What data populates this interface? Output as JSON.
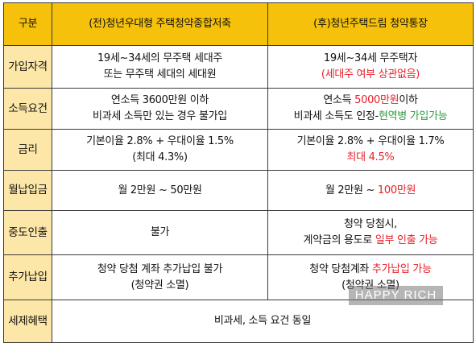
{
  "header": {
    "col0": "구분",
    "col1": "(전)청년우대형 주택청약종합저축",
    "col2": "(후)청년주택드림 청약통장"
  },
  "rows": [
    {
      "label": "가입자격",
      "left": [
        "19세~34세의 무주택 세대주",
        "또는 무주택 세대의 세대원"
      ],
      "right_l1": [
        "19세~34세 무주택자"
      ],
      "right_l2": [
        "(세대주 여부 상관없음)"
      ]
    },
    {
      "label": "소득요건",
      "left": [
        "연소득 3600만원 이하",
        "비과세 소득만 있는 경우 불가입"
      ],
      "right_l1": [
        "연소득 ",
        "5000만원",
        "이하"
      ],
      "right_l2": [
        "비과세 소득도 인정-",
        "현역병 가입가능"
      ]
    },
    {
      "label": "금리",
      "left": [
        "기본이율 2.8% + 우대이율 1.5%",
        "(최대 4.3%)"
      ],
      "right_l1": [
        "기본이율 2.8% + 우대이율 1.7%"
      ],
      "right_l2": [
        "최대 4.5%"
      ]
    },
    {
      "label": "월납입금",
      "left": [
        "월 2만원 ~ 50만원"
      ],
      "right_l1": [
        "월 2만원 ~ ",
        "100만원"
      ]
    },
    {
      "label": "중도인출",
      "left": [
        "불가"
      ],
      "right_l1": [
        "청약 당첨시,"
      ],
      "right_l2": [
        "계약금의 용도로 ",
        "일부 인출 가능"
      ]
    },
    {
      "label": "추가납입",
      "left": [
        "청약 당첨 계좌 추가납입 불가",
        "(청약권 소멸)"
      ],
      "right_l1": [
        "청약 당첨계좌 ",
        "추가납입 가능"
      ],
      "right_l2": [
        "(청약권 소멸)"
      ]
    },
    {
      "label": "세제혜택",
      "merged": "비과세, 소득 요건 동일"
    }
  ],
  "watermark": "HAPPY RICH",
  "colors": {
    "header_bg": "#f6c10a",
    "label_bg": "#fde7a8",
    "highlight_red": "#e8202a",
    "highlight_green": "#2e9a3c"
  }
}
